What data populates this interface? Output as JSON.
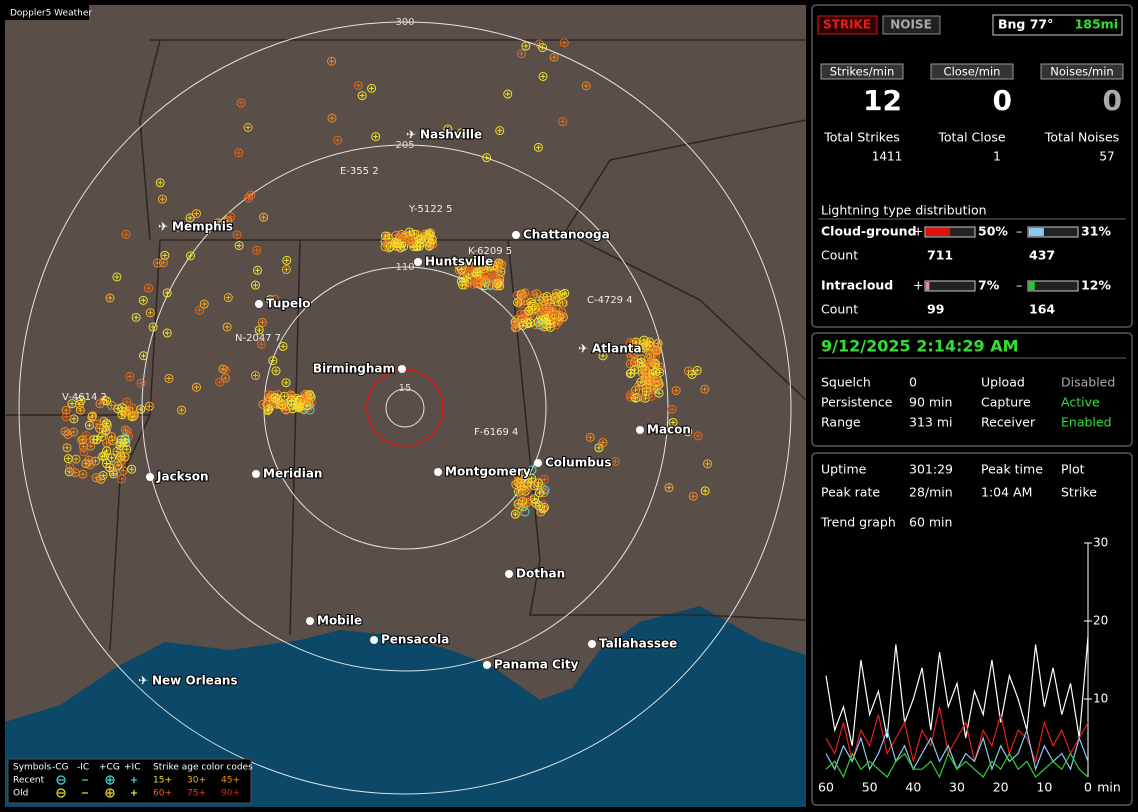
{
  "map": {
    "title": "Doppler5 Weather",
    "range_labels": [
      300,
      205,
      110,
      15
    ],
    "cities": [
      "Nashville",
      "Memphis",
      "Chattanooga",
      "Huntsville",
      "Tupelo",
      "Birmingham",
      "Atlanta",
      "Macon",
      "Jackson",
      "Meridian",
      "Montgomery",
      "Columbus",
      "Dothan",
      "Mobile",
      "Pensacola",
      "Tallahassee",
      "Panama City",
      "New Orleans"
    ],
    "storm_labels": [
      "E-355 2",
      "Y-5122 5",
      "K-6209 5",
      "C-4729 4",
      "N-2047 7",
      "V-4614 2",
      "F-6169 4"
    ],
    "legend": {
      "symbols": "Symbols",
      "types": [
        "-CG",
        "-IC",
        "+CG",
        "+IC"
      ],
      "age_title": "Strike age color codes",
      "rows": [
        "Recent",
        "Old"
      ],
      "ages": [
        "15+",
        "30+",
        "45+",
        "60+",
        "75+",
        "90+"
      ]
    }
  },
  "panel": {
    "mode_buttons": [
      "STRIKE",
      "NOISE"
    ],
    "bearing": "Bng 77°",
    "distance": "185mi",
    "rate_headers": [
      "Strikes/min",
      "Close/min",
      "Noises/min"
    ],
    "rates": [
      12,
      0,
      0
    ],
    "total_labels": [
      "Total Strikes",
      "Total Close",
      "Total Noises"
    ],
    "totals": [
      1411,
      1,
      57
    ],
    "distribution": {
      "title": "Lightning type distribution",
      "rows": [
        {
          "name": "Cloud-ground",
          "pos_sign": "+",
          "pos": {
            "value": 50,
            "label": "50%"
          },
          "neg_sign": "–",
          "neg": {
            "value": 31,
            "label": "31%"
          },
          "count_label": "Count",
          "pos_count": 711,
          "neg_count": 437
        },
        {
          "name": "Intracloud",
          "pos_sign": "+",
          "pos": {
            "value": 7,
            "label": "7%"
          },
          "neg_sign": "–",
          "neg": {
            "value": 12,
            "label": "12%"
          },
          "count_label": "Count",
          "pos_count": 99,
          "neg_count": 164
        }
      ]
    }
  },
  "status": {
    "datetime": "9/12/2025 2:14:29 AM",
    "items": [
      {
        "label": "Squelch",
        "value": "0"
      },
      {
        "label": "Upload",
        "value": "Disabled"
      },
      {
        "label": "Persistence",
        "value": "90 min"
      },
      {
        "label": "Capture",
        "value": "Active"
      },
      {
        "label": "Range",
        "value": "313 mi"
      },
      {
        "label": "Receiver",
        "value": "Enabled"
      }
    ]
  },
  "stats": {
    "uptime": {
      "label": "Uptime",
      "value": "301:29"
    },
    "peak_rate": {
      "label": "Peak rate",
      "value": "28/min"
    },
    "peak_time": {
      "label": "Peak time",
      "value": "1:04 AM"
    },
    "plot": {
      "label": "Plot",
      "value": "Strike"
    },
    "trend": {
      "label": "Trend graph",
      "value": "60 min"
    }
  },
  "chart_data": {
    "type": "line",
    "x": [
      60,
      58,
      56,
      54,
      52,
      50,
      48,
      46,
      44,
      42,
      40,
      38,
      36,
      34,
      32,
      30,
      28,
      26,
      24,
      22,
      20,
      18,
      16,
      14,
      12,
      10,
      8,
      6,
      4,
      2,
      0
    ],
    "xlim": [
      60,
      0
    ],
    "xticks": [
      60,
      50,
      40,
      30,
      20,
      10,
      0
    ],
    "x_unit": "min",
    "ylim": [
      0,
      30
    ],
    "yticks": [
      10,
      20,
      30
    ],
    "series": [
      {
        "color": "#ffffff",
        "values": [
          13,
          6,
          9,
          4,
          15,
          8,
          11,
          5,
          17,
          7,
          10,
          14,
          6,
          16,
          9,
          12,
          5,
          11,
          8,
          15,
          7,
          13,
          10,
          6,
          17,
          9,
          14,
          8,
          12,
          5,
          18
        ]
      },
      {
        "color": "#e02020",
        "values": [
          5,
          3,
          7,
          2,
          6,
          4,
          8,
          3,
          5,
          7,
          2,
          6,
          4,
          9,
          3,
          5,
          7,
          2,
          6,
          4,
          8,
          3,
          6,
          5,
          2,
          7,
          4,
          6,
          3,
          5,
          7
        ]
      },
      {
        "color": "#8ec8f0",
        "values": [
          3,
          1,
          4,
          2,
          5,
          1,
          3,
          6,
          2,
          4,
          1,
          3,
          5,
          2,
          4,
          1,
          3,
          2,
          5,
          1,
          4,
          2,
          3,
          6,
          1,
          4,
          2,
          3,
          1,
          5,
          2
        ]
      },
      {
        "color": "#30d030",
        "values": [
          1,
          2,
          0,
          3,
          1,
          2,
          1,
          0,
          2,
          3,
          1,
          1,
          2,
          0,
          3,
          1,
          2,
          1,
          0,
          2,
          1,
          3,
          1,
          2,
          0,
          1,
          2,
          1,
          3,
          1,
          0
        ]
      }
    ]
  }
}
